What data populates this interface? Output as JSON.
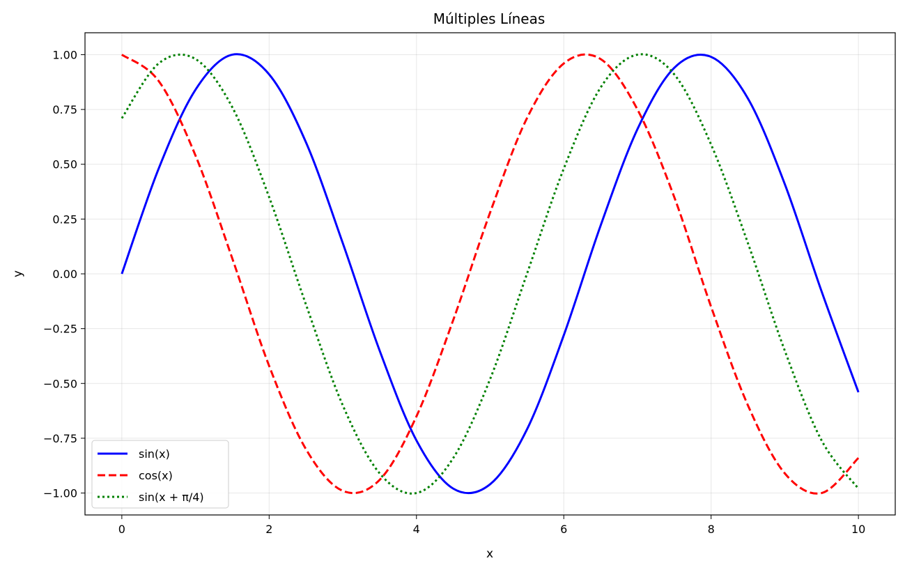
{
  "chart_data": {
    "type": "line",
    "title": "Múltiples Líneas",
    "xlabel": "x",
    "ylabel": "y",
    "xlim": [
      -0.5,
      10.5
    ],
    "ylim": [
      -1.1,
      1.1
    ],
    "x_ticks": [
      0,
      2,
      4,
      6,
      8,
      10
    ],
    "x_tick_labels": [
      "0",
      "2",
      "4",
      "6",
      "8",
      "10"
    ],
    "y_ticks": [
      1.0,
      0.75,
      0.5,
      0.25,
      0.0,
      -0.25,
      -0.5,
      -0.75,
      -1.0
    ],
    "y_tick_labels": [
      "1.00",
      "0.75",
      "0.50",
      "0.25",
      "0.00",
      "−0.25",
      "−0.50",
      "−0.75",
      "−1.00"
    ],
    "grid": true,
    "legend_position": "lower-left",
    "series": [
      {
        "name": "sin(x)",
        "color": "#0000ff",
        "style": "solid",
        "x": [
          0,
          0.5,
          1,
          1.5,
          2,
          2.5,
          3,
          3.5,
          4,
          4.5,
          5,
          5.5,
          6,
          6.5,
          7,
          7.5,
          8,
          8.5,
          9,
          9.5,
          10
        ],
        "y": [
          0.0,
          0.48,
          0.84,
          1.0,
          0.91,
          0.6,
          0.14,
          -0.35,
          -0.76,
          -0.98,
          -0.96,
          -0.71,
          -0.28,
          0.22,
          0.66,
          0.94,
          0.99,
          0.8,
          0.41,
          -0.08,
          -0.54
        ]
      },
      {
        "name": "cos(x)",
        "color": "#ff0000",
        "style": "dashed",
        "x": [
          0,
          0.5,
          1,
          1.5,
          2,
          2.5,
          3,
          3.5,
          4,
          4.5,
          5,
          5.5,
          6,
          6.5,
          7,
          7.5,
          8,
          8.5,
          9,
          9.5,
          10
        ],
        "y": [
          1.0,
          0.88,
          0.54,
          0.07,
          -0.42,
          -0.8,
          -0.99,
          -0.94,
          -0.65,
          -0.21,
          0.28,
          0.71,
          0.96,
          0.98,
          0.75,
          0.35,
          -0.15,
          -0.6,
          -0.91,
          -1.0,
          -0.84
        ]
      },
      {
        "name": "sin(x + π/4)",
        "color": "#008000",
        "style": "dotted",
        "x": [
          0,
          0.5,
          1,
          1.5,
          2,
          2.5,
          3,
          3.5,
          4,
          4.5,
          5,
          5.5,
          6,
          6.5,
          7,
          7.5,
          8,
          8.5,
          9,
          9.5,
          10
        ],
        "y": [
          0.71,
          0.96,
          0.98,
          0.76,
          0.35,
          -0.14,
          -0.6,
          -0.91,
          -1.0,
          -0.84,
          -0.48,
          0.0,
          0.48,
          0.85,
          1.0,
          0.91,
          0.59,
          0.14,
          -0.35,
          -0.76,
          -0.98
        ]
      }
    ]
  }
}
